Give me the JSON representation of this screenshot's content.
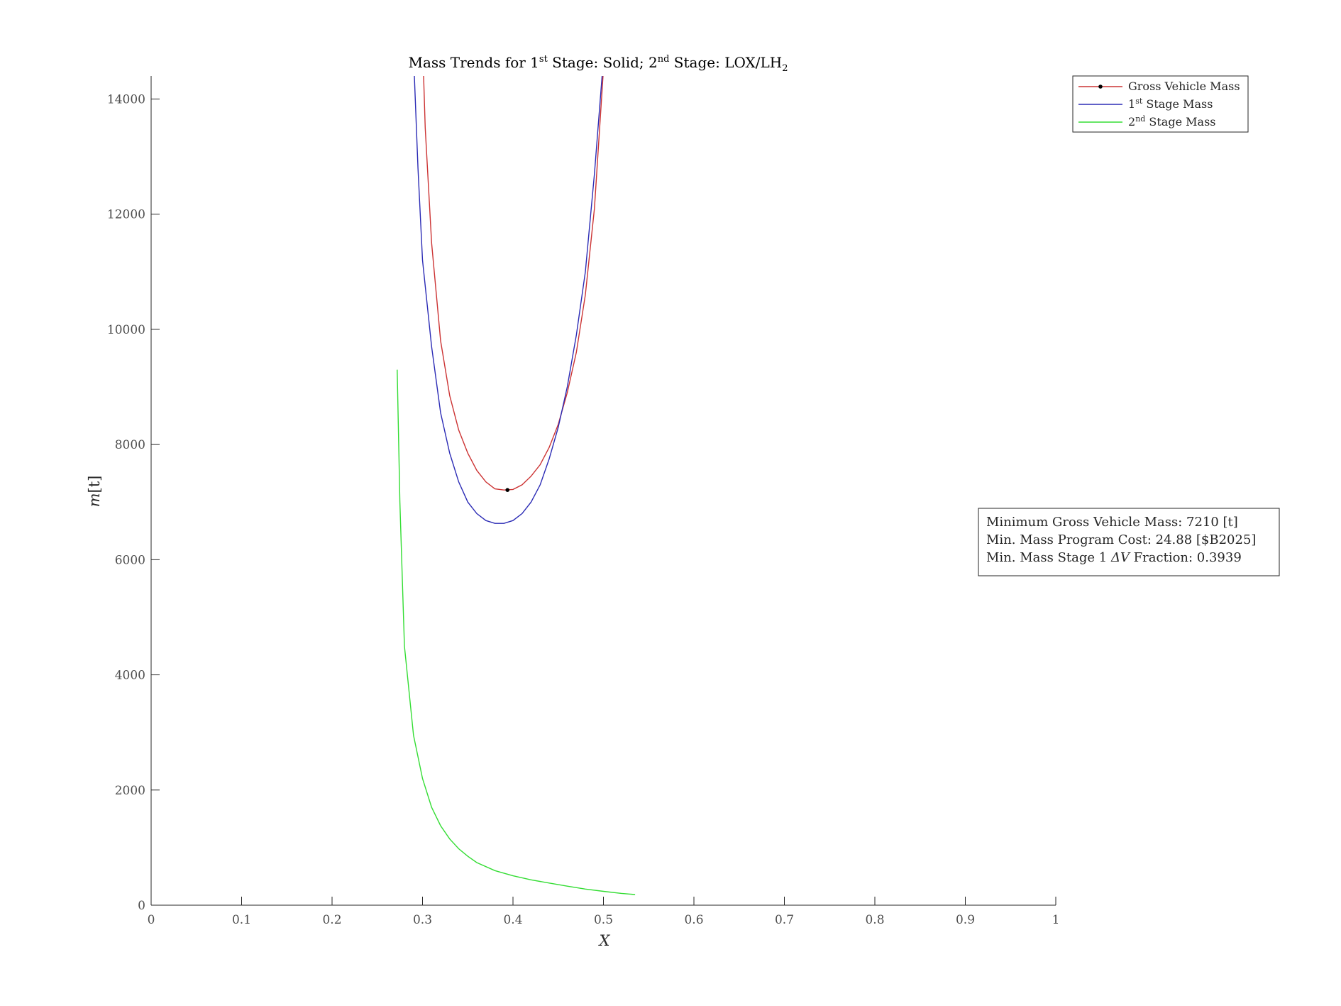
{
  "chart_data": {
    "type": "line",
    "title": {
      "part1": "Mass Trends for 1",
      "sup1": "st",
      "part2": " Stage: Solid; 2",
      "sup2": "nd",
      "part3": " Stage: LOX/LH",
      "sub3": "2"
    },
    "xlabel": "X",
    "ylabel": {
      "m": "m",
      "unit": "[t]"
    },
    "xlim": [
      0,
      1
    ],
    "ylim": [
      0,
      14400
    ],
    "xticks": [
      0,
      0.1,
      0.2,
      0.3,
      0.4,
      0.5,
      0.6,
      0.7,
      0.8,
      0.9,
      1
    ],
    "xtick_labels": [
      "0",
      "0.1",
      "0.2",
      "0.3",
      "0.4",
      "0.5",
      "0.6",
      "0.7",
      "0.8",
      "0.9",
      "1"
    ],
    "yticks": [
      0,
      2000,
      4000,
      6000,
      8000,
      10000,
      12000,
      14000
    ],
    "ytick_labels": [
      "0",
      "2000",
      "4000",
      "6000",
      "8000",
      "10000",
      "12000",
      "14000"
    ],
    "legend_placement": "top-right",
    "series": [
      {
        "key": "gross",
        "name": "Gross Vehicle Mass",
        "legend": {
          "pre": "Gross Vehicle Mass",
          "sup": "",
          "post": ""
        },
        "color": "#cc3333",
        "points": [
          [
            0.3,
            15000
          ],
          [
            0.303,
            13500
          ],
          [
            0.31,
            11500
          ],
          [
            0.32,
            9800
          ],
          [
            0.33,
            8850
          ],
          [
            0.34,
            8250
          ],
          [
            0.35,
            7850
          ],
          [
            0.36,
            7550
          ],
          [
            0.37,
            7350
          ],
          [
            0.38,
            7230
          ],
          [
            0.39,
            7210
          ],
          [
            0.4,
            7220
          ],
          [
            0.41,
            7300
          ],
          [
            0.42,
            7450
          ],
          [
            0.43,
            7650
          ],
          [
            0.44,
            7950
          ],
          [
            0.45,
            8350
          ],
          [
            0.46,
            8900
          ],
          [
            0.47,
            9600
          ],
          [
            0.48,
            10600
          ],
          [
            0.49,
            12100
          ],
          [
            0.495,
            13300
          ],
          [
            0.4995,
            14400
          ]
        ]
      },
      {
        "key": "stage1",
        "name": "1st Stage Mass",
        "legend": {
          "pre": "1",
          "sup": "st",
          "post": " Stage Mass"
        },
        "color": "#2b2bb5",
        "points": [
          [
            0.291,
            14400
          ],
          [
            0.295,
            12800
          ],
          [
            0.3,
            11200
          ],
          [
            0.31,
            9700
          ],
          [
            0.32,
            8550
          ],
          [
            0.33,
            7850
          ],
          [
            0.34,
            7350
          ],
          [
            0.35,
            7000
          ],
          [
            0.36,
            6800
          ],
          [
            0.37,
            6680
          ],
          [
            0.38,
            6630
          ],
          [
            0.39,
            6630
          ],
          [
            0.4,
            6680
          ],
          [
            0.41,
            6800
          ],
          [
            0.42,
            7000
          ],
          [
            0.43,
            7300
          ],
          [
            0.44,
            7750
          ],
          [
            0.45,
            8300
          ],
          [
            0.46,
            9000
          ],
          [
            0.47,
            9900
          ],
          [
            0.48,
            11000
          ],
          [
            0.49,
            12700
          ],
          [
            0.4985,
            14400
          ]
        ]
      },
      {
        "key": "stage2",
        "name": "2nd Stage Mass",
        "legend": {
          "pre": "2",
          "sup": "nd",
          "post": " Stage Mass"
        },
        "color": "#33dd33",
        "points": [
          [
            0.272,
            9300
          ],
          [
            0.275,
            7000
          ],
          [
            0.28,
            4500
          ],
          [
            0.29,
            2950
          ],
          [
            0.3,
            2200
          ],
          [
            0.31,
            1700
          ],
          [
            0.32,
            1380
          ],
          [
            0.33,
            1150
          ],
          [
            0.34,
            980
          ],
          [
            0.35,
            850
          ],
          [
            0.36,
            740
          ],
          [
            0.38,
            600
          ],
          [
            0.4,
            510
          ],
          [
            0.42,
            440
          ],
          [
            0.44,
            385
          ],
          [
            0.46,
            330
          ],
          [
            0.48,
            280
          ],
          [
            0.5,
            240
          ],
          [
            0.52,
            205
          ],
          [
            0.535,
            185
          ]
        ]
      }
    ],
    "marker": {
      "x": 0.3939,
      "y": 7210,
      "series": "Gross Vehicle Mass"
    },
    "annotation": {
      "line1": {
        "pre": "Minimum Gross Vehicle Mass: 7210 [t]"
      },
      "line2": {
        "pre": "Min. Mass Program Cost: 24.88 [$B2025]"
      },
      "line3": {
        "pre": "Min. Mass Stage 1 ",
        "dv": "ΔV",
        "post": " Fraction: 0.3939"
      }
    }
  }
}
